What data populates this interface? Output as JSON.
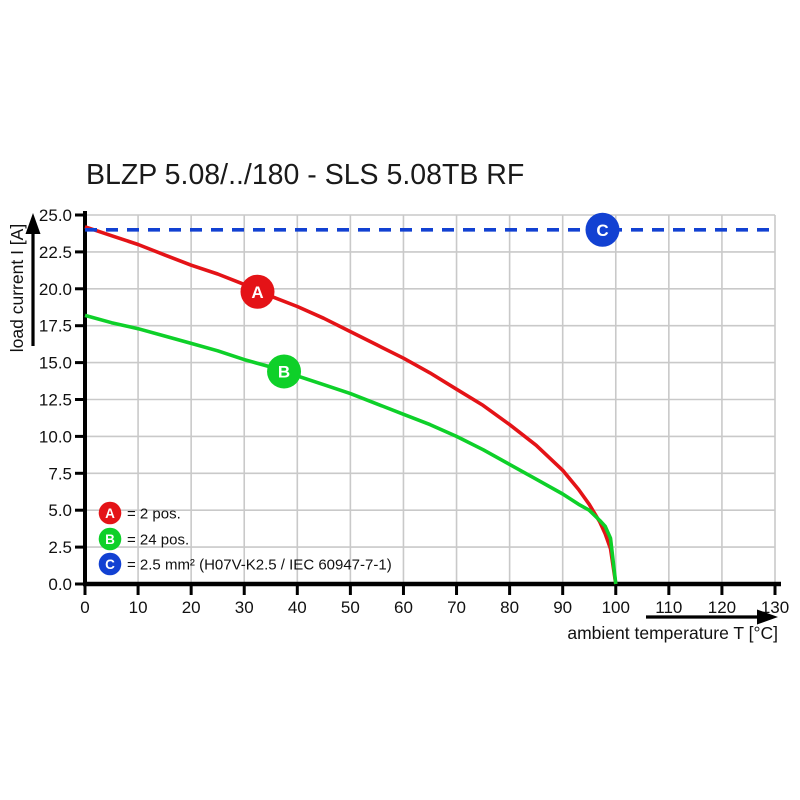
{
  "colors": {
    "background": "#ffffff",
    "grid": "#c9c9c9",
    "axis": "#000000",
    "text": "#111111",
    "series_a_red": "#e41317",
    "series_b_green": "#0ed029",
    "series_c_blue": "#1241d2"
  },
  "chart_data": {
    "type": "line",
    "title": "BLZP 5.08/../180 - SLS 5.08TB RF",
    "xlabel": "ambient temperature T [°C]",
    "ylabel": "load current I [A]",
    "xlim": [
      0,
      130
    ],
    "ylim": [
      0,
      25
    ],
    "grid": true,
    "legend_position": "lower left",
    "x_ticks": [
      0,
      10,
      20,
      30,
      40,
      50,
      60,
      70,
      80,
      90,
      100,
      110,
      120,
      130
    ],
    "y_ticks": [
      0,
      2.5,
      5,
      7.5,
      10,
      12.5,
      15,
      17.5,
      20,
      22.5,
      25
    ],
    "y_tick_labels": [
      "0.0",
      "2.5",
      "5.0",
      "7.5",
      "10.0",
      "12.5",
      "15.0",
      "17.5",
      "20.0",
      "22.5",
      "25.0"
    ],
    "series": [
      {
        "marker": "A",
        "name": "2 pos.",
        "legend_label": "= 2 pos.",
        "color": "#e41317",
        "dashed": false,
        "marker_at": [
          32.5,
          19.8
        ],
        "points": [
          [
            0,
            24.2
          ],
          [
            5,
            23.6
          ],
          [
            10,
            23.0
          ],
          [
            15,
            22.3
          ],
          [
            20,
            21.6
          ],
          [
            25,
            21.0
          ],
          [
            30,
            20.3
          ],
          [
            35,
            19.5
          ],
          [
            40,
            18.8
          ],
          [
            45,
            18.0
          ],
          [
            50,
            17.1
          ],
          [
            55,
            16.2
          ],
          [
            60,
            15.3
          ],
          [
            65,
            14.3
          ],
          [
            70,
            13.2
          ],
          [
            75,
            12.1
          ],
          [
            80,
            10.8
          ],
          [
            85,
            9.4
          ],
          [
            90,
            7.7
          ],
          [
            93,
            6.4
          ],
          [
            95,
            5.4
          ],
          [
            97,
            4.2
          ],
          [
            98,
            3.4
          ],
          [
            99,
            2.4
          ],
          [
            100,
            0
          ]
        ]
      },
      {
        "marker": "B",
        "name": "24 pos.",
        "legend_label": "= 24 pos.",
        "color": "#0ed029",
        "dashed": false,
        "marker_at": [
          37.5,
          14.4
        ],
        "points": [
          [
            0,
            18.2
          ],
          [
            5,
            17.7
          ],
          [
            10,
            17.3
          ],
          [
            15,
            16.8
          ],
          [
            20,
            16.3
          ],
          [
            25,
            15.8
          ],
          [
            30,
            15.2
          ],
          [
            35,
            14.7
          ],
          [
            40,
            14.1
          ],
          [
            45,
            13.5
          ],
          [
            50,
            12.9
          ],
          [
            55,
            12.2
          ],
          [
            60,
            11.5
          ],
          [
            65,
            10.8
          ],
          [
            70,
            10.0
          ],
          [
            75,
            9.1
          ],
          [
            80,
            8.1
          ],
          [
            85,
            7.1
          ],
          [
            90,
            6.1
          ],
          [
            93,
            5.4
          ],
          [
            95,
            5.0
          ],
          [
            97,
            4.3
          ],
          [
            98,
            3.9
          ],
          [
            99,
            3.1
          ],
          [
            100,
            0
          ]
        ]
      },
      {
        "marker": "C",
        "name": "2.5 mm² (H07V-K2.5 / IEC 60947-7-1)",
        "legend_label": "= 2.5 mm² (H07V-K2.5 / IEC 60947-7-1)",
        "color": "#1241d2",
        "dashed": true,
        "marker_at": [
          97.5,
          24
        ],
        "points": [
          [
            0,
            24
          ],
          [
            130,
            24
          ]
        ]
      }
    ]
  }
}
